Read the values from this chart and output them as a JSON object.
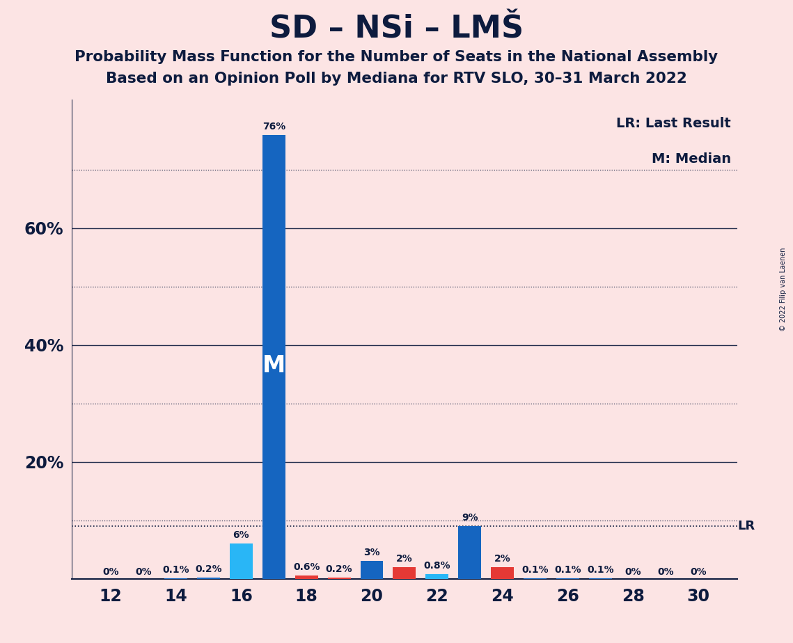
{
  "title": "SD – NSi – LMŠ",
  "subtitle1": "Probability Mass Function for the Number of Seats in the National Assembly",
  "subtitle2": "Based on an Opinion Poll by Mediana for RTV SLO, 30–31 March 2022",
  "copyright": "© 2022 Filip van Laenen",
  "lr_label": "LR: Last Result",
  "m_label": "M: Median",
  "lr_value": 9.0,
  "background_color": "#fce4e4",
  "bar_color_main": "#1565C0",
  "bar_color_light": "#29B6F6",
  "bar_color_red": "#E53935",
  "text_color": "#0d1b3e",
  "seats": [
    12,
    13,
    14,
    15,
    16,
    17,
    18,
    19,
    20,
    21,
    22,
    23,
    24,
    25,
    26,
    27,
    28,
    29,
    30
  ],
  "probabilities": [
    0.0,
    0.0,
    0.1,
    0.2,
    6.0,
    76.0,
    0.6,
    0.2,
    3.0,
    2.0,
    0.8,
    9.0,
    2.0,
    0.1,
    0.1,
    0.1,
    0.0,
    0.0,
    0.0
  ],
  "bar_colors": [
    "main",
    "main",
    "main",
    "main",
    "light",
    "main",
    "red",
    "red",
    "main",
    "red",
    "light",
    "main",
    "red",
    "main",
    "main",
    "main",
    "main",
    "main",
    "main"
  ],
  "labels": [
    "0%",
    "0%",
    "0.1%",
    "0.2%",
    "6%",
    "76%",
    "0.6%",
    "0.2%",
    "3%",
    "2%",
    "0.8%",
    "9%",
    "2%",
    "0.1%",
    "0.1%",
    "0.1%",
    "0%",
    "0%",
    "0%"
  ],
  "median_seat": 17,
  "ylim": [
    0,
    82
  ],
  "xticks": [
    12,
    14,
    16,
    18,
    20,
    22,
    24,
    26,
    28,
    30
  ],
  "ytick_positions": [
    20,
    40,
    60
  ],
  "ytick_labels": [
    "20%",
    "40%",
    "60%"
  ],
  "dotted_lines": [
    10,
    30,
    50,
    70
  ],
  "solid_lines": [
    20,
    40,
    60
  ],
  "bar_width": 0.7
}
